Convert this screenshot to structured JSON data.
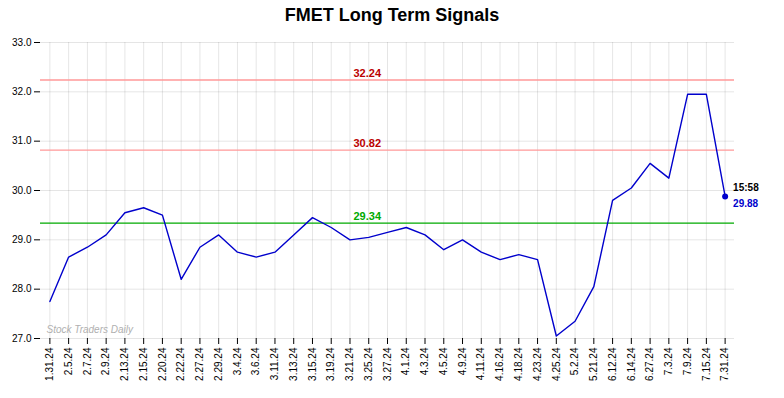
{
  "chart_data": {
    "type": "line",
    "title": "FMET Long Term Signals",
    "categories": [
      "1.31.24",
      "2.5.24",
      "2.7.24",
      "2.9.24",
      "2.13.24",
      "2.15.24",
      "2.20.24",
      "2.22.24",
      "2.27.24",
      "2.29.24",
      "3.4.24",
      "3.6.24",
      "3.11.24",
      "3.13.24",
      "3.15.24",
      "3.19.24",
      "3.21.24",
      "3.25.24",
      "3.27.24",
      "4.1.24",
      "4.3.24",
      "4.5.24",
      "4.9.24",
      "4.11.24",
      "4.16.24",
      "4.18.24",
      "4.23.24",
      "4.25.24",
      "5.2.24",
      "5.21.24",
      "6.12.24",
      "6.14.24",
      "6.27.24",
      "7.3.24",
      "7.9.24",
      "7.15.24",
      "7.31.24"
    ],
    "values": [
      27.75,
      28.65,
      28.85,
      29.1,
      29.55,
      29.65,
      29.5,
      28.2,
      28.85,
      29.1,
      28.75,
      28.65,
      28.75,
      29.1,
      29.45,
      29.25,
      29.0,
      29.05,
      29.15,
      29.25,
      29.1,
      28.8,
      29.0,
      28.75,
      28.6,
      28.7,
      28.6,
      27.05,
      27.35,
      28.05,
      29.8,
      30.05,
      30.55,
      30.25,
      31.95,
      31.95,
      29.88
    ],
    "color": "#0000cc",
    "ylim": [
      27,
      33
    ],
    "yticks": [
      27,
      28,
      29,
      30,
      31,
      32,
      33
    ],
    "grid": true,
    "hlines": [
      {
        "value": 29.34,
        "label": "29.34",
        "color": "#00aa00",
        "label_color": "#00aa00"
      },
      {
        "value": 30.82,
        "label": "30.82",
        "color": "#ff9999",
        "label_color": "#bb0000"
      },
      {
        "value": 32.24,
        "label": "32.24",
        "color": "#ff9999",
        "label_color": "#bb0000"
      }
    ],
    "end_dot_color": "#0000cc",
    "end_labels": [
      {
        "text": "15:58",
        "color": "#000000"
      },
      {
        "text": "29.88",
        "color": "#0000cc"
      }
    ],
    "watermark": "Stock Traders Daily"
  }
}
